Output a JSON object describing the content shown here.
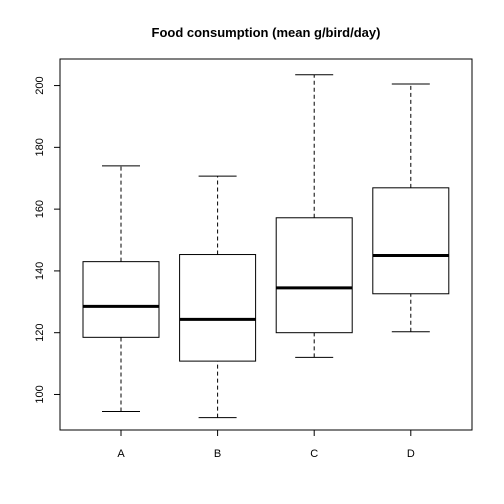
{
  "chart_data": {
    "type": "boxplot",
    "title": "Food consumption (mean g/bird/day)",
    "xlabel": "",
    "ylabel": "",
    "categories": [
      "A",
      "B",
      "C",
      "D"
    ],
    "boxes": [
      {
        "label": "A",
        "whisker_low": 94.5,
        "q1": 118.5,
        "median": 128.5,
        "q3": 143,
        "whisker_high": 174
      },
      {
        "label": "B",
        "whisker_low": 92.5,
        "q1": 110.8,
        "median": 124.3,
        "q3": 145.3,
        "whisker_high": 170.7
      },
      {
        "label": "C",
        "whisker_low": 112,
        "q1": 120,
        "median": 134.5,
        "q3": 157.2,
        "whisker_high": 203.5
      },
      {
        "label": "D",
        "whisker_low": 120.3,
        "q1": 132.6,
        "median": 145,
        "q3": 166.9,
        "whisker_high": 200.5
      }
    ],
    "yticks": [
      100,
      120,
      140,
      160,
      180,
      200
    ],
    "ylim": [
      88.5,
      208.6
    ],
    "grid": false,
    "legend": "none",
    "colors": {
      "box_fill": "#ffffff",
      "stroke": "#000000"
    }
  }
}
